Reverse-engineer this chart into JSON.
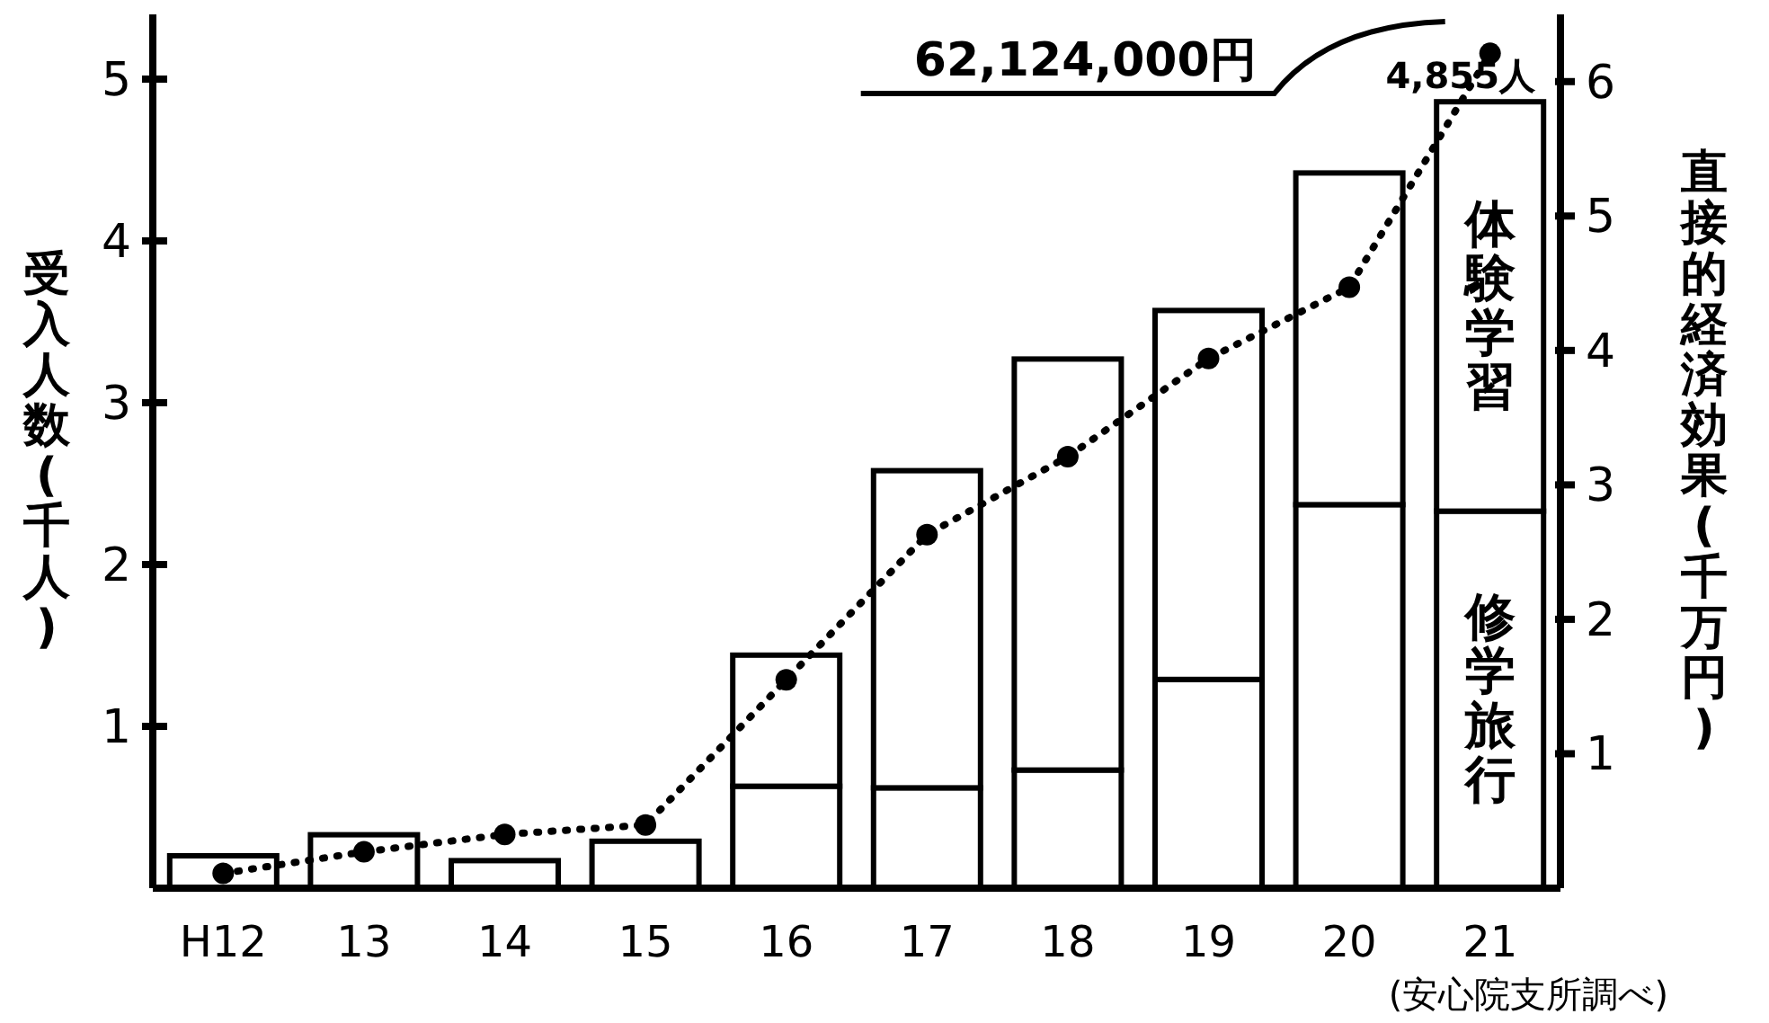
{
  "chart_data": {
    "type": "bar",
    "stacked": true,
    "categories": [
      "H12",
      "13",
      "14",
      "15",
      "16",
      "17",
      "18",
      "19",
      "20",
      "21"
    ],
    "series": [
      {
        "name": "修学旅行",
        "color": "#ffffff",
        "values": [
          0,
          0,
          0,
          0,
          0.63,
          0.62,
          0.73,
          1.29,
          2.37,
          2.33
        ]
      },
      {
        "name": "体験学習",
        "color": "#ffffff",
        "values": [
          0.2,
          0.33,
          0.17,
          0.29,
          0.81,
          1.96,
          2.54,
          2.28,
          2.05,
          2.53
        ]
      },
      {
        "type": "line",
        "axis": "y2",
        "color": "#000000",
        "line_style": "dotted",
        "marker": "circle",
        "values": [
          0.11,
          0.27,
          0.4,
          0.47,
          1.55,
          2.63,
          3.21,
          3.94,
          4.47,
          6.21
        ]
      }
    ],
    "ylabel": "受入人数(千人)",
    "y2label": "直接的経済効果(千万円)",
    "ylim": [
      0,
      5.4
    ],
    "yticks": [
      1,
      2,
      3,
      4,
      5
    ],
    "y2lim": [
      0,
      6.5
    ],
    "y2ticks": [
      1,
      2,
      3,
      4,
      5,
      6
    ],
    "annotations": [
      "62,124,000円",
      {
        "text": "4,855人",
        "x": "21",
        "y": 4.855
      },
      "(安心院支所調べ)"
    ]
  }
}
